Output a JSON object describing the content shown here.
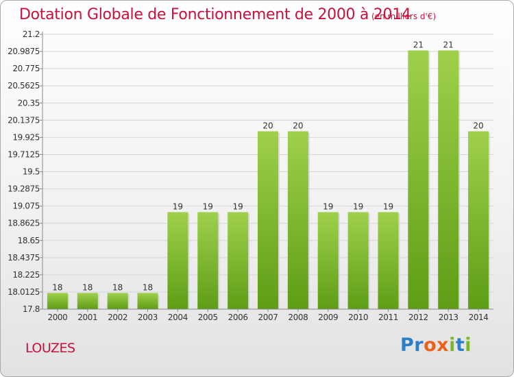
{
  "title": "Dotation Globale de Fonctionnement de 2000 à 2014",
  "unit": "(en milliers d'€)",
  "commune": "LOUZES",
  "logo": {
    "p1": "Pr",
    "o": "o",
    "x": "x",
    "i1": "i",
    "t": "t",
    "i2": "i"
  },
  "colors": {
    "bar_light": "#9fd04c",
    "bar_dark": "#5e9d15",
    "title": "#c8103c"
  },
  "chart_data": {
    "type": "bar",
    "title": "Dotation Globale de Fonctionnement de 2000 à 2014",
    "xlabel": "",
    "ylabel": "",
    "categories": [
      "2000",
      "2001",
      "2002",
      "2003",
      "2004",
      "2005",
      "2006",
      "2007",
      "2008",
      "2009",
      "2010",
      "2011",
      "2012",
      "2013",
      "2014"
    ],
    "values": [
      18,
      18,
      18,
      18,
      19,
      19,
      19,
      20,
      20,
      19,
      19,
      19,
      21,
      21,
      20
    ],
    "plot_values": [
      18.0,
      18.0,
      18.0,
      18.0,
      19.0,
      19.0,
      19.0,
      20.0,
      20.0,
      19.0,
      19.0,
      19.0,
      21.0,
      21.0,
      20.0
    ],
    "data_labels": [
      "18",
      "18",
      "18",
      "18",
      "19",
      "19",
      "19",
      "20",
      "20",
      "19",
      "19",
      "19",
      "21",
      "21",
      "20"
    ],
    "yticks": [
      "17.8",
      "18.0125",
      "18.225",
      "18.4375",
      "18.65",
      "18.8625",
      "19.075",
      "19.2875",
      "19.5",
      "19.7125",
      "19.925",
      "20.1375",
      "20.35",
      "20.5625",
      "20.775",
      "20.9875",
      "21.2"
    ],
    "ylim": [
      17.8,
      21.2
    ],
    "grid": true,
    "legend": "none"
  }
}
